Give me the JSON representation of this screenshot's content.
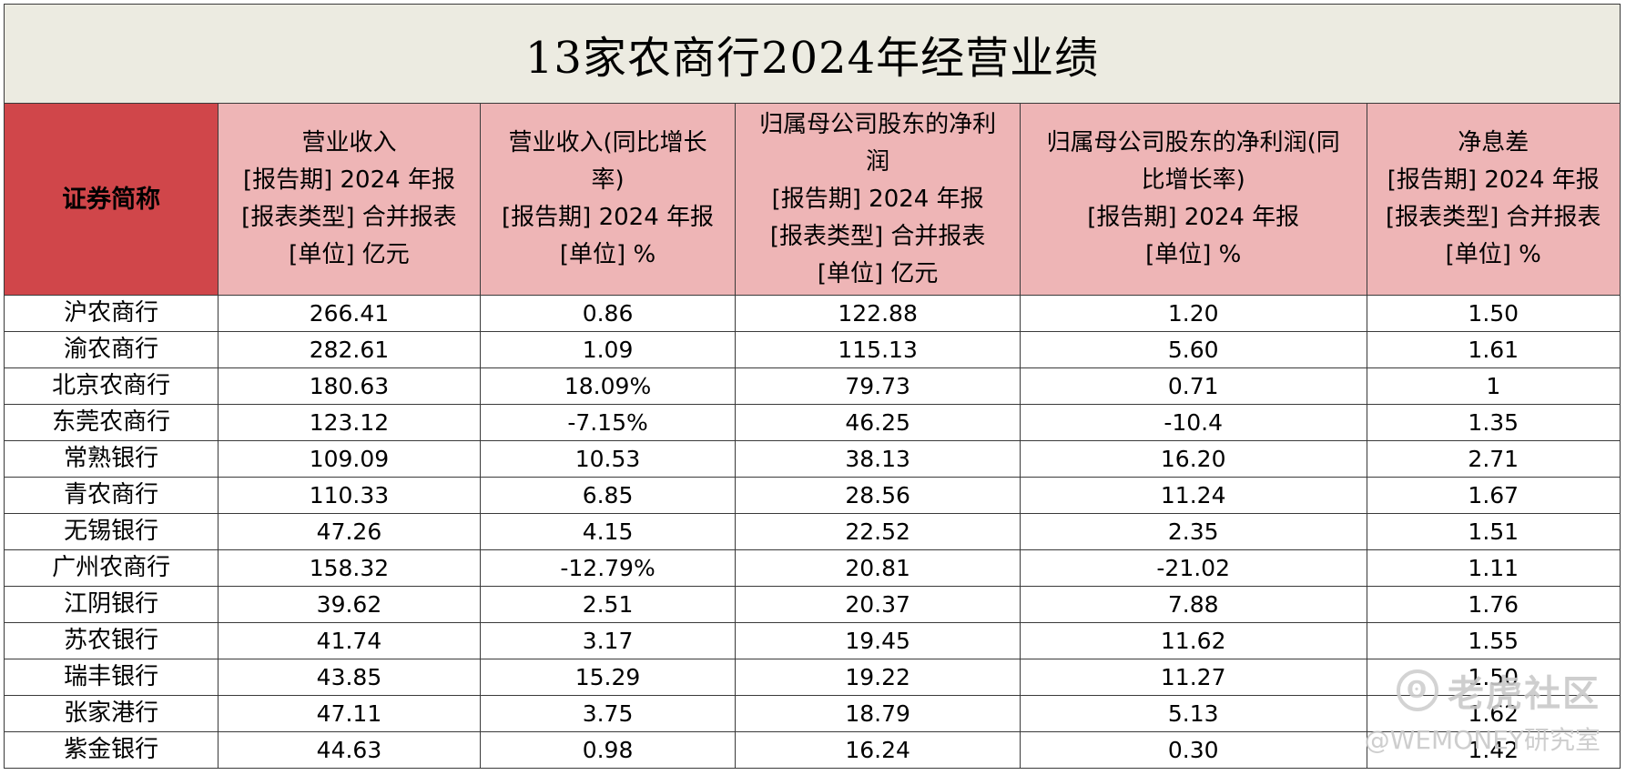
{
  "title": "13家农商行2024年经营业绩",
  "columns": [
    {
      "lines": [
        "证券简称"
      ]
    },
    {
      "lines": [
        "营业收入",
        "[报告期] 2024 年报",
        "[报表类型] 合并报表",
        "[单位] 亿元"
      ]
    },
    {
      "lines": [
        "营业收入(同比增长",
        "率)",
        "[报告期] 2024 年报",
        "[单位] %"
      ]
    },
    {
      "lines": [
        "归属母公司股东的净利",
        "润",
        "[报告期] 2024 年报",
        "[报表类型] 合并报表",
        "[单位] 亿元"
      ]
    },
    {
      "lines": [
        "归属母公司股东的净利润(同",
        "比增长率)",
        "[报告期] 2024 年报",
        "[单位] %"
      ]
    },
    {
      "lines": [
        "净息差",
        "[报告期] 2024 年报",
        "[报表类型] 合并报表",
        "[单位] %"
      ]
    }
  ],
  "rows": [
    [
      "沪农商行",
      "266.41",
      "0.86",
      "122.88",
      "1.20",
      "1.50"
    ],
    [
      "渝农商行",
      "282.61",
      "1.09",
      "115.13",
      "5.60",
      "1.61"
    ],
    [
      "北京农商行",
      "180.63",
      "18.09%",
      "79.73",
      "0.71",
      "1"
    ],
    [
      "东莞农商行",
      "123.12",
      "-7.15%",
      "46.25",
      "-10.4",
      "1.35"
    ],
    [
      "常熟银行",
      "109.09",
      "10.53",
      "38.13",
      "16.20",
      "2.71"
    ],
    [
      "青农商行",
      "110.33",
      "6.85",
      "28.56",
      "11.24",
      "1.67"
    ],
    [
      "无锡银行",
      "47.26",
      "4.15",
      "22.52",
      "2.35",
      "1.51"
    ],
    [
      "广州农商行",
      "158.32",
      "-12.79%",
      "20.81",
      "-21.02",
      "1.11"
    ],
    [
      "江阴银行",
      "39.62",
      "2.51",
      "20.37",
      "7.88",
      "1.76"
    ],
    [
      "苏农银行",
      "41.74",
      "3.17",
      "19.45",
      "11.62",
      "1.55"
    ],
    [
      "瑞丰银行",
      "43.85",
      "15.29",
      "19.22",
      "11.27",
      "1.50"
    ],
    [
      "张家港行",
      "47.11",
      "3.75",
      "18.79",
      "5.13",
      "1.62"
    ],
    [
      "紫金银行",
      "44.63",
      "0.98",
      "16.24",
      "0.30",
      "1.42"
    ]
  ],
  "watermark": {
    "brand": "老虎社区",
    "handle": "@WEMONEY研究室"
  },
  "colors": {
    "title_bg": "#ecebe1",
    "header_bg": "#eeb5b6",
    "first_header_bg": "#d0464a",
    "border": "#3a3a3a"
  }
}
